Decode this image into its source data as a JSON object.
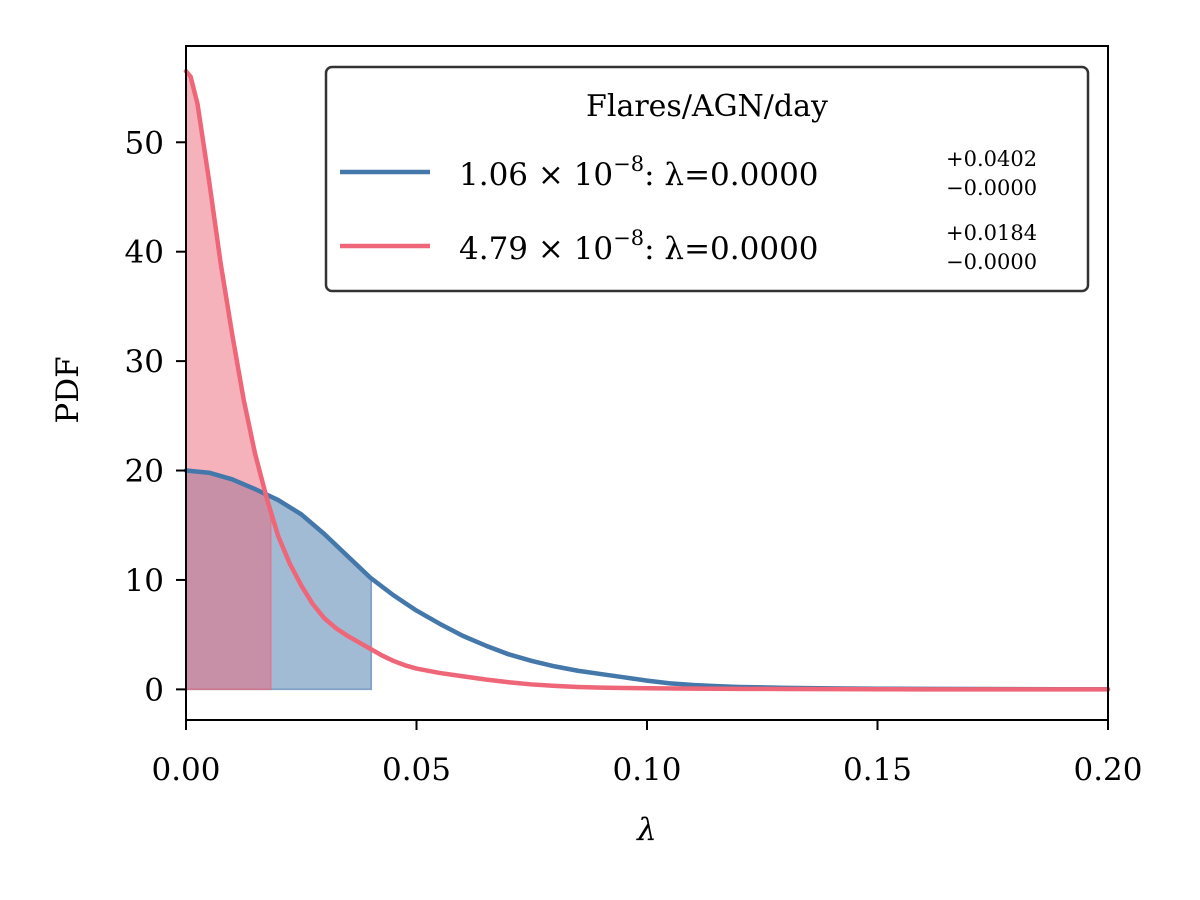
{
  "chart_data": {
    "type": "area",
    "title": "",
    "xlabel": "λ",
    "ylabel": "PDF",
    "xlim": [
      0.0,
      0.2
    ],
    "ylim": [
      -2.8,
      58.8
    ],
    "xticks": [
      0.0,
      0.05,
      0.1,
      0.15,
      0.2
    ],
    "xtick_labels": [
      "0.00",
      "0.05",
      "0.10",
      "0.15",
      "0.20"
    ],
    "yticks": [
      0,
      10,
      20,
      30,
      40,
      50
    ],
    "ytick_labels": [
      "0",
      "10",
      "20",
      "30",
      "40",
      "50"
    ],
    "grid": false,
    "legend": {
      "title": "Flares/AGN/day",
      "position": "top-right"
    },
    "series": [
      {
        "name": "1.06 × 10⁻⁸",
        "legend_rate": "1.06 × 10",
        "legend_exp": "−8",
        "legend_value": ": λ=0.0000",
        "legend_upper": "+0.0402",
        "legend_lower": "−0.0000",
        "color": "#4477aa",
        "fill_color": "#4477aa",
        "fill_to": 0.0402,
        "x": [
          0.0,
          0.005,
          0.01,
          0.015,
          0.02,
          0.025,
          0.03,
          0.035,
          0.04,
          0.045,
          0.05,
          0.055,
          0.06,
          0.065,
          0.07,
          0.075,
          0.08,
          0.085,
          0.09,
          0.095,
          0.1,
          0.105,
          0.11,
          0.115,
          0.12,
          0.13,
          0.14,
          0.15,
          0.16,
          0.17,
          0.18,
          0.19,
          0.2
        ],
        "y": [
          20.0,
          19.8,
          19.2,
          18.3,
          17.3,
          16.0,
          14.2,
          12.2,
          10.2,
          8.6,
          7.2,
          6.0,
          4.9,
          4.0,
          3.2,
          2.6,
          2.1,
          1.7,
          1.4,
          1.1,
          0.8,
          0.55,
          0.4,
          0.3,
          0.22,
          0.14,
          0.09,
          0.06,
          0.04,
          0.03,
          0.02,
          0.015,
          0.01
        ]
      },
      {
        "name": "4.79 × 10⁻⁸",
        "legend_rate": "4.79 × 10",
        "legend_exp": "−8",
        "legend_value": ": λ=0.0000",
        "legend_upper": "+0.0184",
        "legend_lower": "−0.0000",
        "color": "#ee6677",
        "fill_color": "#ee6677",
        "fill_to": 0.0184,
        "x": [
          0.0,
          0.001,
          0.0025,
          0.005,
          0.0075,
          0.01,
          0.0125,
          0.015,
          0.0175,
          0.02,
          0.0225,
          0.025,
          0.0275,
          0.03,
          0.0325,
          0.035,
          0.0375,
          0.04,
          0.0425,
          0.045,
          0.0475,
          0.05,
          0.055,
          0.06,
          0.065,
          0.07,
          0.075,
          0.08,
          0.085,
          0.09,
          0.095,
          0.1,
          0.11,
          0.12,
          0.13,
          0.14,
          0.15,
          0.16,
          0.17,
          0.18,
          0.19,
          0.2
        ],
        "y": [
          56.5,
          56.0,
          53.5,
          46.5,
          39.0,
          32.5,
          26.5,
          21.5,
          17.5,
          14.0,
          11.5,
          9.5,
          7.8,
          6.5,
          5.6,
          4.9,
          4.3,
          3.7,
          3.1,
          2.6,
          2.2,
          1.9,
          1.5,
          1.2,
          0.9,
          0.65,
          0.45,
          0.32,
          0.22,
          0.16,
          0.12,
          0.1,
          0.07,
          0.05,
          0.03,
          0.02,
          0.01,
          0.0,
          0.0,
          0.0,
          0.0,
          0.0
        ]
      }
    ]
  }
}
